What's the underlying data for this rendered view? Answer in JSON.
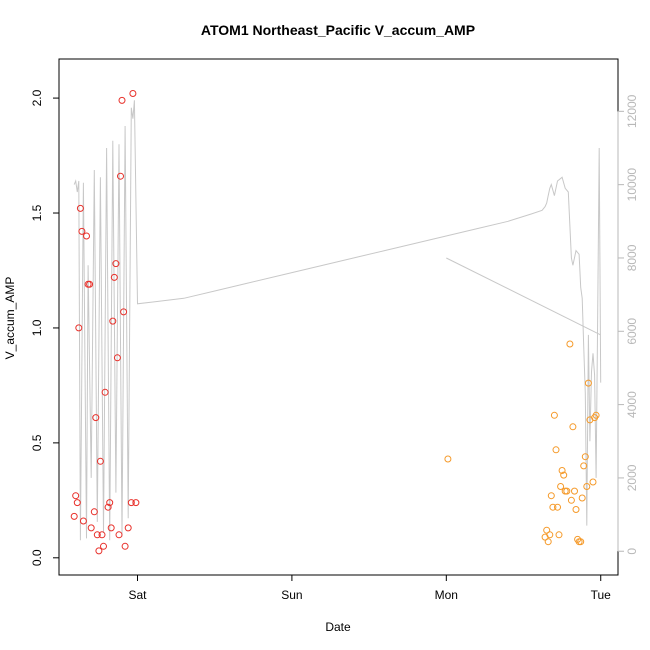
{
  "chart_data": {
    "type": "scatter",
    "title": "ATOM1 Northeast_Pacific V_accum_AMP",
    "xlabel": "Date",
    "ylabel": "V_accum_AMP",
    "x_unit": "days",
    "x_ticks": [
      {
        "label": "Sat",
        "value": 1.0
      },
      {
        "label": "Sun",
        "value": 2.0
      },
      {
        "label": "Mon",
        "value": 3.0
      },
      {
        "label": "Tue",
        "value": 4.0
      }
    ],
    "xlim": [
      0.55,
      4.06
    ],
    "ylim": [
      -0.04,
      2.07
    ],
    "yticks": [
      "0.0",
      "0.5",
      "1.0",
      "1.5",
      "2.0"
    ],
    "y2lim": [
      -430,
      12800
    ],
    "y2ticks": [
      "0",
      "2000",
      "4000",
      "6000",
      "8000",
      "10000",
      "12000"
    ],
    "grid": false,
    "colors": {
      "series1": "#e8302a",
      "series2": "#f59a2a",
      "line": "#c8c8c8",
      "axis": "#000000",
      "right_axis": "#b8b8b8"
    },
    "series": [
      {
        "color": "#e8302a",
        "x": [
          0.59,
          0.6,
          0.61,
          0.62,
          0.63,
          0.64,
          0.65,
          0.67,
          0.68,
          0.69,
          0.7,
          0.72,
          0.73,
          0.74,
          0.75,
          0.76,
          0.77,
          0.78,
          0.79,
          0.81,
          0.82,
          0.83,
          0.84,
          0.85,
          0.86,
          0.87,
          0.88,
          0.89,
          0.9,
          0.91,
          0.92,
          0.94,
          0.96,
          0.97,
          0.99
        ],
        "y": [
          0.18,
          0.27,
          0.24,
          1.0,
          1.52,
          1.42,
          0.16,
          1.4,
          1.19,
          1.19,
          0.13,
          0.2,
          0.61,
          0.1,
          0.03,
          0.42,
          0.1,
          0.05,
          0.72,
          0.22,
          0.24,
          0.13,
          1.03,
          1.22,
          1.28,
          0.87,
          0.1,
          1.66,
          1.99,
          1.07,
          0.05,
          0.13,
          0.24,
          2.02,
          0.24
        ]
      },
      {
        "color": "#f59a2a",
        "x": [
          3.01,
          3.64,
          3.65,
          3.66,
          3.67,
          3.68,
          3.69,
          3.7,
          3.71,
          3.72,
          3.73,
          3.74,
          3.75,
          3.76,
          3.77,
          3.78,
          3.8,
          3.81,
          3.82,
          3.83,
          3.84,
          3.85,
          3.86,
          3.87,
          3.88,
          3.89,
          3.9,
          3.91,
          3.92,
          3.93,
          3.95,
          3.96,
          3.97
        ],
        "y": [
          0.43,
          0.09,
          0.12,
          0.07,
          0.1,
          0.27,
          0.22,
          0.62,
          0.47,
          0.22,
          0.1,
          0.31,
          0.38,
          0.36,
          0.29,
          0.29,
          0.93,
          0.25,
          0.57,
          0.29,
          0.21,
          0.08,
          0.07,
          0.07,
          0.26,
          0.4,
          0.44,
          0.31,
          0.76,
          0.6,
          0.33,
          0.61,
          0.62
        ]
      }
    ],
    "line_series": {
      "color": "#c8c8c8",
      "axis": "right",
      "x": [
        0.59,
        0.6,
        0.61,
        0.62,
        0.63,
        0.65,
        0.67,
        0.68,
        0.7,
        0.72,
        0.74,
        0.76,
        0.78,
        0.8,
        0.82,
        0.84,
        0.86,
        0.88,
        0.9,
        0.92,
        0.94,
        0.96,
        0.97,
        0.98,
        1.0,
        1.1,
        1.3,
        1.5,
        1.7,
        2.0,
        2.3,
        2.6,
        2.9,
        3.2,
        3.4,
        3.55,
        3.62,
        3.64,
        3.65,
        3.66,
        3.67,
        3.68,
        3.7,
        3.72,
        3.75,
        3.77,
        3.79,
        3.81,
        3.82,
        3.84,
        3.86,
        3.87,
        3.88,
        3.89,
        3.9,
        3.91,
        3.92,
        3.93,
        3.94,
        3.95,
        3.96,
        3.97,
        3.98,
        3.99,
        4.0
      ],
      "y": [
        10000,
        10100,
        9800,
        10100,
        300,
        10050,
        350,
        7800,
        2000,
        10400,
        800,
        10200,
        500,
        11000,
        300,
        11200,
        1600,
        11100,
        400,
        11600,
        900,
        12100,
        11800,
        12300,
        6750,
        6800,
        6900,
        7100,
        7300,
        7600,
        7900,
        8200,
        8500,
        8800,
        9000,
        9200,
        9300,
        9400,
        9500,
        9700,
        9900,
        10000,
        9700,
        10100,
        10200,
        9900,
        9800,
        8000,
        7800,
        8200,
        8100,
        7200,
        6900,
        5600,
        4300,
        700,
        5900,
        3000,
        4900,
        5400,
        4800,
        2000,
        6200,
        11000,
        4600
      ]
    },
    "line_segment_2": {
      "color": "#c8c8c8",
      "axis": "right",
      "x": [
        3.0,
        4.0
      ],
      "y": [
        8000,
        5900
      ]
    }
  }
}
